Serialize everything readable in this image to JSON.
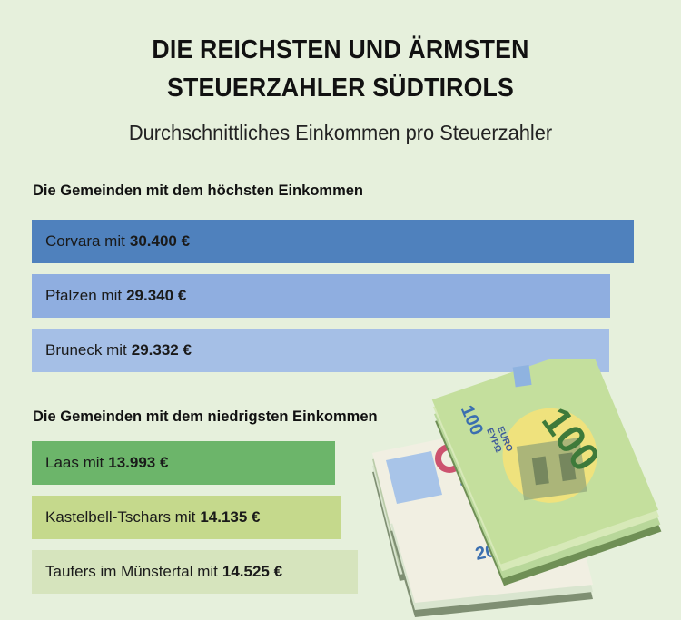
{
  "title_line1": "DIE REICHSTEN UND ÄRMSTEN",
  "title_line2": "STEUERZAHLER SÜDTIROLS",
  "subtitle": "Durchschnittliches Einkommen pro Steuerzahler",
  "chart_data": {
    "type": "bar",
    "orientation": "horizontal",
    "unit": "€",
    "groups": [
      {
        "label": "Die Gemeinden mit dem höchsten Einkommen",
        "items": [
          {
            "name": "Corvara mit",
            "value": 30400,
            "display": "30.400 €",
            "color": "#4f81bd"
          },
          {
            "name": "Pfalzen mit",
            "value": 29340,
            "display": "29.340 €",
            "color": "#8faee0"
          },
          {
            "name": "Bruneck mit",
            "value": 29332,
            "display": "29.332 €",
            "color": "#a5bfe6"
          }
        ]
      },
      {
        "label": "Die Gemeinden mit dem niedrigsten Einkommen",
        "items": [
          {
            "name": "Laas mit",
            "value": 13993,
            "display": "13.993 €",
            "color": "#6cb56a"
          },
          {
            "name": "Kastelbell-Tschars mit",
            "value": 14135,
            "display": "14.135 €",
            "color": "#c5d98c"
          },
          {
            "name": "Taufers im Münstertal mit",
            "value": 14525,
            "display": "14.525 €",
            "color": "#d6e4bd"
          }
        ]
      }
    ]
  },
  "illustration": {
    "name": "euro-banknotes-stack",
    "note_value": "100",
    "note_value_small": "20",
    "euro_text": "EURO",
    "euro_text_alt": "ΕΥΡΩ"
  }
}
